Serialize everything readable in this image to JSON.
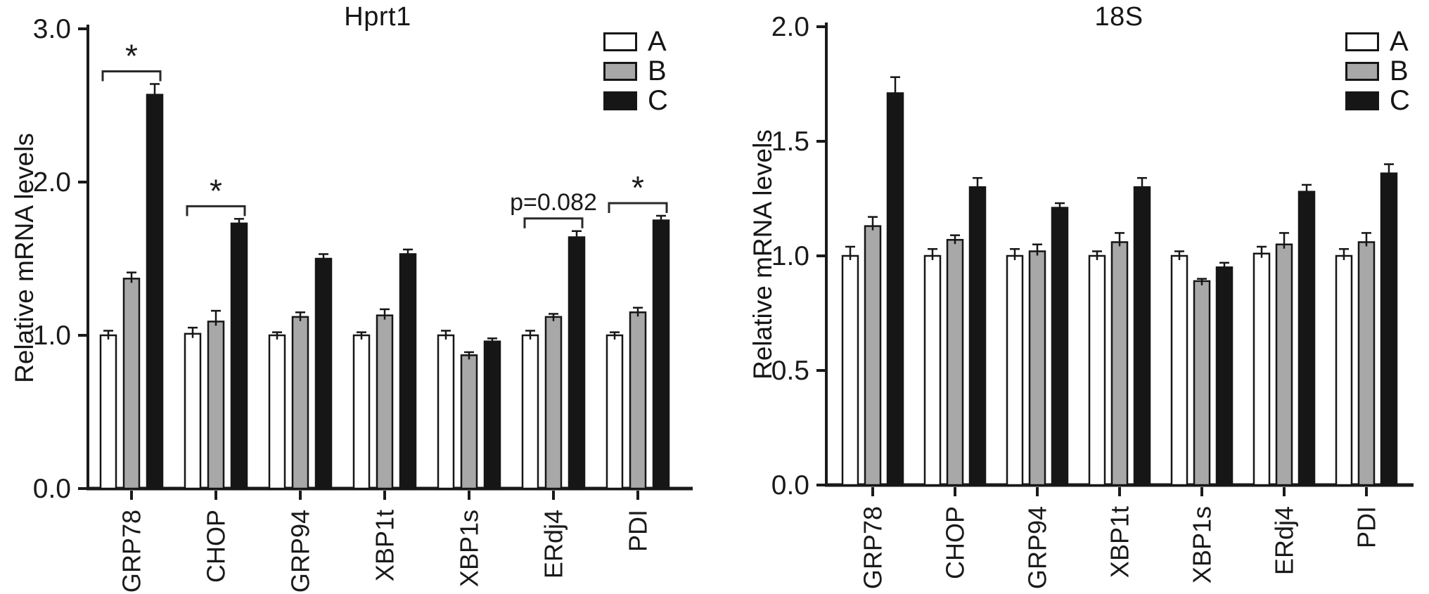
{
  "figure": {
    "background": "#ffffff"
  },
  "colors": {
    "series_a_fill": "#ffffff",
    "series_b_fill": "#a8a8a8",
    "series_c_fill": "#161616",
    "outline": "#161616",
    "axis": "#1a1a1a",
    "text": "#1a1a1a"
  },
  "chart_data": [
    {
      "type": "bar",
      "title": "Hprt1",
      "ylabel": "Relative mRNA levels",
      "xlabel": "",
      "ylim": [
        0,
        3.0
      ],
      "ytick_values": [
        0,
        1,
        2,
        3
      ],
      "ytick_labels": [
        "0.0",
        "1.0",
        "2.0",
        "3.0"
      ],
      "grid": false,
      "legend_position": "top-right",
      "categories": [
        "GRP78",
        "CHOP",
        "GRP94",
        "XBP1t",
        "XBP1s",
        "ERdj4",
        "PDI"
      ],
      "series": [
        {
          "name": "A",
          "fill": "#ffffff",
          "values": [
            1.0,
            1.01,
            1.0,
            1.0,
            1.0,
            1.0,
            1.0
          ],
          "errors": [
            0.03,
            0.04,
            0.02,
            0.02,
            0.03,
            0.03,
            0.02
          ]
        },
        {
          "name": "B",
          "fill": "#a8a8a8",
          "values": [
            1.37,
            1.09,
            1.12,
            1.13,
            0.87,
            1.12,
            1.15
          ],
          "errors": [
            0.04,
            0.07,
            0.03,
            0.04,
            0.02,
            0.02,
            0.03
          ]
        },
        {
          "name": "C",
          "fill": "#161616",
          "values": [
            2.57,
            1.73,
            1.5,
            1.53,
            0.96,
            1.64,
            1.75
          ],
          "errors": [
            0.07,
            0.03,
            0.03,
            0.03,
            0.02,
            0.04,
            0.03
          ]
        }
      ],
      "legend": [
        {
          "label": "A"
        },
        {
          "label": "B"
        },
        {
          "label": "C"
        }
      ],
      "annotations": [
        {
          "category": "GRP78",
          "span": [
            "A",
            "C"
          ],
          "label": "*"
        },
        {
          "category": "CHOP",
          "span": [
            "A",
            "C"
          ],
          "label": "*"
        },
        {
          "category": "ERdj4",
          "span": [
            "A",
            "C"
          ],
          "label": "p=0.082"
        },
        {
          "category": "PDI",
          "span": [
            "A",
            "C"
          ],
          "label": "*"
        }
      ]
    },
    {
      "type": "bar",
      "title": "18S",
      "ylabel": "Relative mRNA levels",
      "xlabel": "",
      "ylim": [
        0,
        2.0
      ],
      "ytick_values": [
        0,
        0.5,
        1,
        1.5,
        2
      ],
      "ytick_labels": [
        "0.0",
        "0.5",
        "1.0",
        "1.5",
        "2.0"
      ],
      "grid": false,
      "legend_position": "top-right",
      "categories": [
        "GRP78",
        "CHOP",
        "GRP94",
        "XBP1t",
        "XBP1s",
        "ERdj4",
        "PDI"
      ],
      "series": [
        {
          "name": "A",
          "fill": "#ffffff",
          "values": [
            1.0,
            1.0,
            1.0,
            1.0,
            1.0,
            1.01,
            1.0
          ],
          "errors": [
            0.04,
            0.03,
            0.03,
            0.02,
            0.02,
            0.03,
            0.03
          ]
        },
        {
          "name": "B",
          "fill": "#a8a8a8",
          "values": [
            1.13,
            1.07,
            1.02,
            1.06,
            0.89,
            1.05,
            1.06
          ],
          "errors": [
            0.04,
            0.02,
            0.03,
            0.04,
            0.01,
            0.05,
            0.04
          ]
        },
        {
          "name": "C",
          "fill": "#161616",
          "values": [
            1.71,
            1.3,
            1.21,
            1.3,
            0.95,
            1.28,
            1.36
          ],
          "errors": [
            0.07,
            0.04,
            0.02,
            0.04,
            0.02,
            0.03,
            0.04
          ]
        }
      ],
      "legend": [
        {
          "label": "A"
        },
        {
          "label": "B"
        },
        {
          "label": "C"
        }
      ],
      "annotations": []
    }
  ]
}
